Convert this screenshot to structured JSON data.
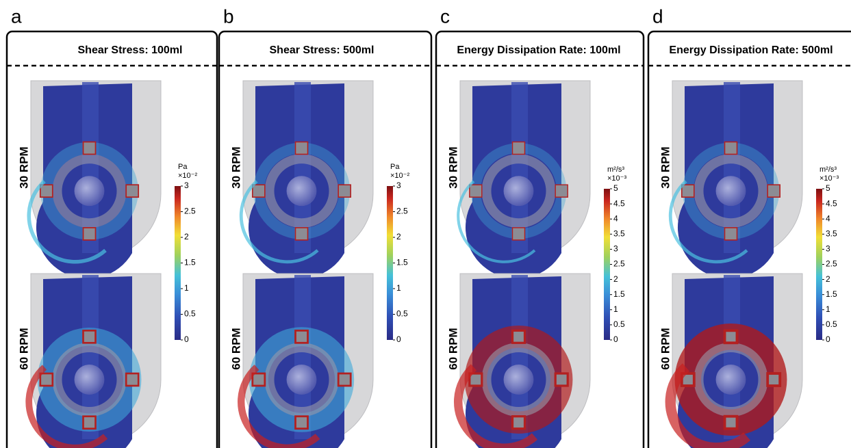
{
  "panels": [
    {
      "letter": "a",
      "title": "Shear Stress: 100ml",
      "rows": [
        "30 RPM",
        "60 RPM"
      ],
      "colorbar": {
        "unit": "Pa",
        "scale": "×10⁻²",
        "ticks": [
          0,
          0.5,
          1,
          1.5,
          2,
          2.5,
          3
        ]
      }
    },
    {
      "letter": "b",
      "title": "Shear Stress: 500ml",
      "rows": [
        "30 RPM",
        "60 RPM"
      ],
      "colorbar": {
        "unit": "Pa",
        "scale": "×10⁻²",
        "ticks": [
          0,
          0.5,
          1,
          1.5,
          2,
          2.5,
          3
        ]
      }
    },
    {
      "letter": "c",
      "title": "Energy Dissipation Rate: 100ml",
      "rows": [
        "30 RPM",
        "60 RPM"
      ],
      "colorbar": {
        "unit": "m²/s³",
        "scale": "×10⁻³",
        "ticks": [
          0,
          0.5,
          1,
          1.5,
          2,
          2.5,
          3,
          3.5,
          4,
          4.5,
          5
        ]
      }
    },
    {
      "letter": "d",
      "title": "Energy Dissipation Rate: 500ml",
      "rows": [
        "30 RPM",
        "60 RPM"
      ],
      "colorbar": {
        "unit": "m²/s³",
        "scale": "×10⁻³",
        "ticks": [
          0,
          0.5,
          1,
          1.5,
          2,
          2.5,
          3,
          3.5,
          4,
          4.5,
          5
        ]
      }
    }
  ]
}
